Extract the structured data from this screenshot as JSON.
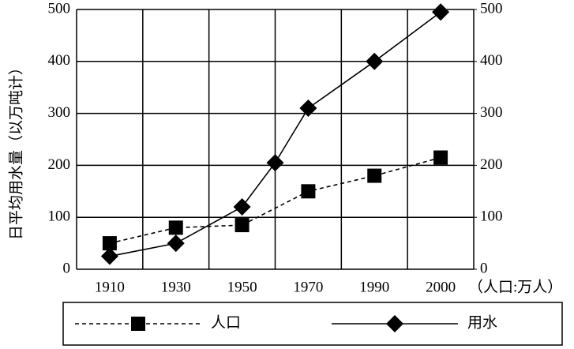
{
  "chart_data": {
    "type": "line",
    "ylabel": "日平均用水量（以万吨计）",
    "y2label": "（人口:万人）",
    "categories": [
      "1910",
      "1930",
      "1950",
      null,
      "1970",
      "1990",
      "2000"
    ],
    "series": [
      {
        "name": "人口",
        "color": "#000000",
        "dash": true,
        "marker": "square",
        "axis": "y2",
        "connect_gaps": true,
        "values": [
          50,
          80,
          85,
          null,
          150,
          180,
          215
        ]
      },
      {
        "name": "用水",
        "color": "#000000",
        "dash": false,
        "marker": "diamond",
        "values": [
          25,
          50,
          120,
          205,
          310,
          400,
          495
        ]
      }
    ],
    "ylim": [
      0,
      500
    ],
    "yticks": [
      0,
      100,
      200,
      300,
      400,
      500
    ],
    "y2lim": [
      0,
      500
    ],
    "y2ticks": [
      0,
      100,
      200,
      300,
      400,
      500
    ],
    "grid": true
  }
}
